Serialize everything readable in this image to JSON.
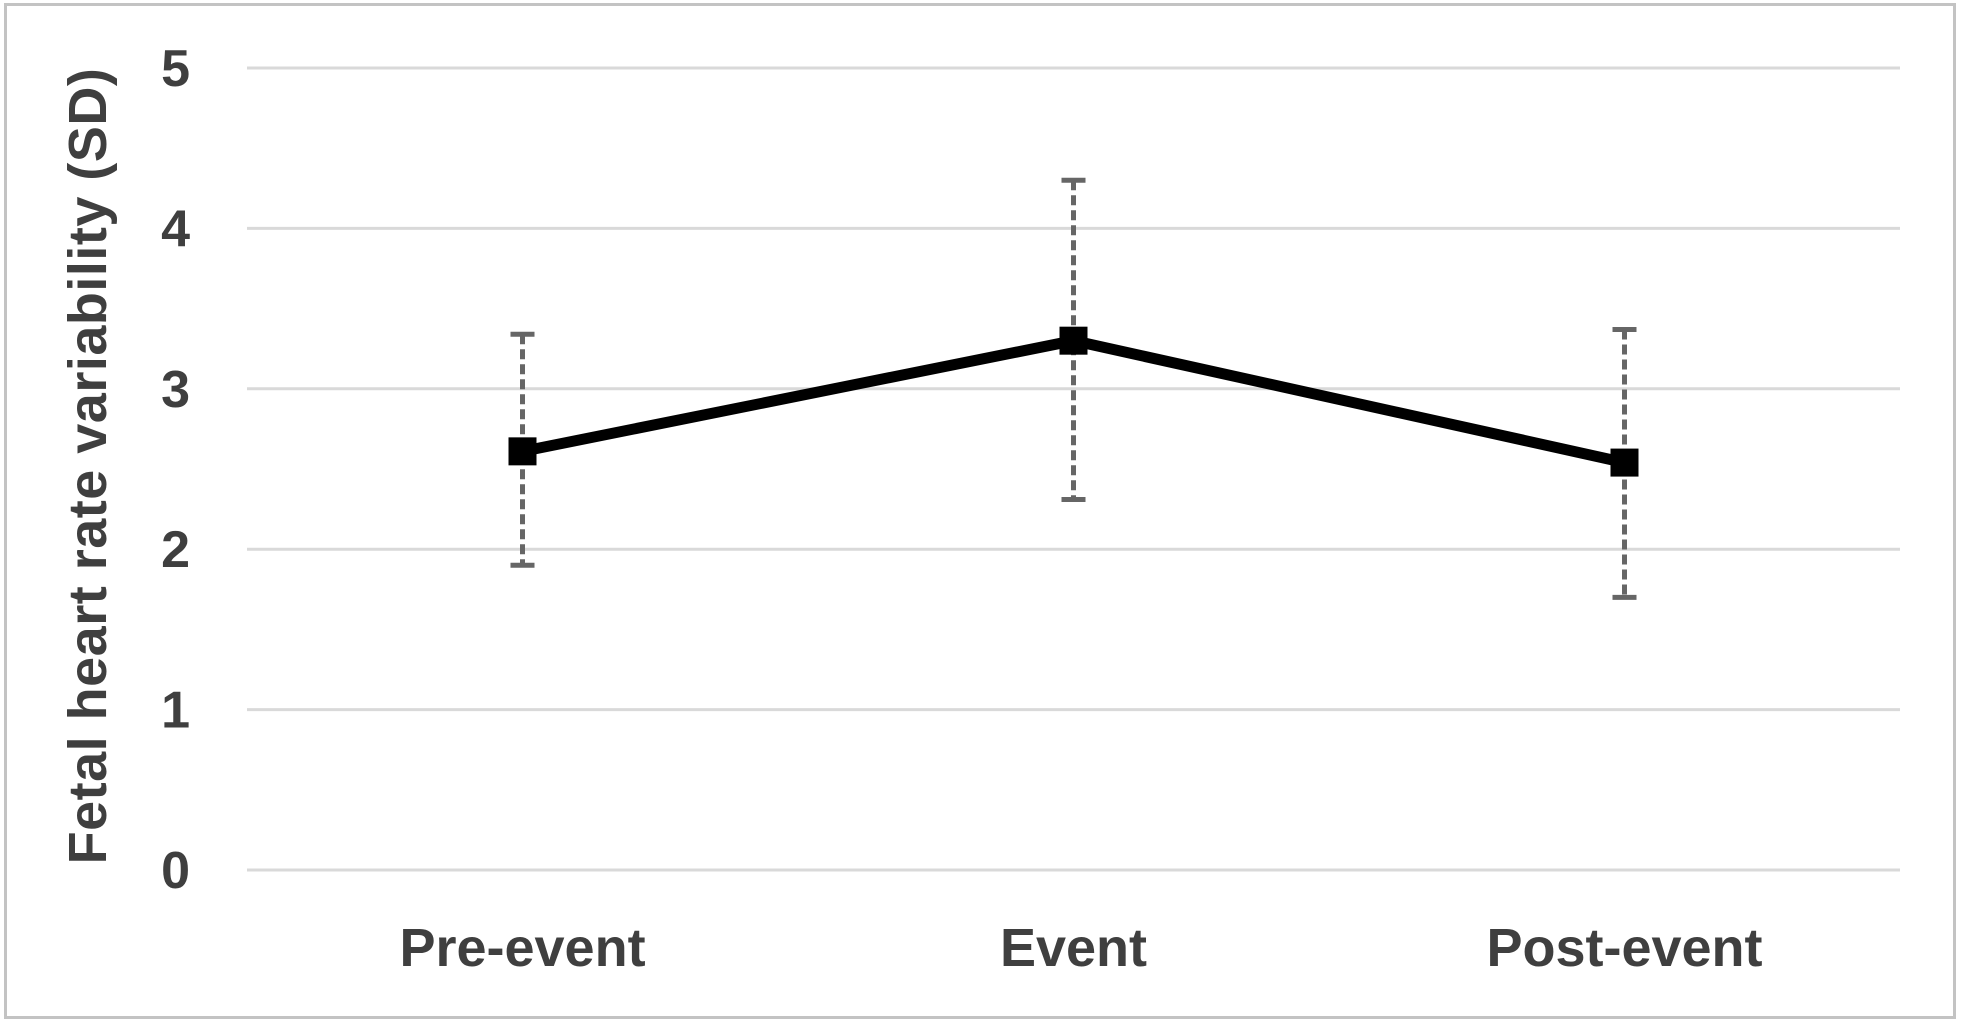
{
  "figure": {
    "background": "#ffffff",
    "border_color": "#c3c3c3"
  },
  "chart_data": {
    "type": "line",
    "title": "",
    "categories": [
      "Pre-event",
      "Event",
      "Post-event"
    ],
    "series": [
      {
        "name": "Fetal heart rate variability",
        "values": [
          2.61,
          3.3,
          2.54
        ],
        "error_upper": [
          3.34,
          4.3,
          3.37
        ],
        "error_lower": [
          1.9,
          2.31,
          1.7
        ],
        "color": "#000000",
        "marker": "square"
      }
    ],
    "xlabel": "",
    "ylabel": "Fetal heart rate variability (SD)",
    "ylim": [
      0,
      5
    ],
    "yticks": [
      5,
      4,
      3,
      2,
      1,
      0
    ],
    "grid": true,
    "legend": false,
    "gridline_color": "#d9d9d9",
    "errorbar_color": "#666666",
    "text_color": "#3f3f3f"
  }
}
